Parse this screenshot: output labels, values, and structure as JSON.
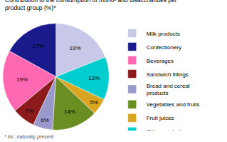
{
  "chart_data": {
    "type": "pie",
    "title": "Contribution to the consumption of mono- and disaccharides per\nproduct group (%)*",
    "annotations": [
      "* inc. naturally present"
    ],
    "categories": [
      "Milk products",
      "Confectionery",
      "Beverages",
      "Sandwich fillings",
      "Bread and cereal\nproducts",
      "Vegetables and fruits",
      "Fruit juices",
      "Other products"
    ],
    "values": [
      19,
      17,
      19,
      7,
      6,
      14,
      5,
      13
    ],
    "value_labels": [
      "19%",
      "17%",
      "19%",
      "7%",
      "6%",
      "14%",
      "5%",
      "13%"
    ],
    "colors": [
      "#c8c8e8",
      "#1a1a8c",
      "#ff69b4",
      "#8b1a1a",
      "#9999cc",
      "#6b8e23",
      "#daa520",
      "#00cdcd"
    ],
    "data_labels": true,
    "legend": "right"
  }
}
